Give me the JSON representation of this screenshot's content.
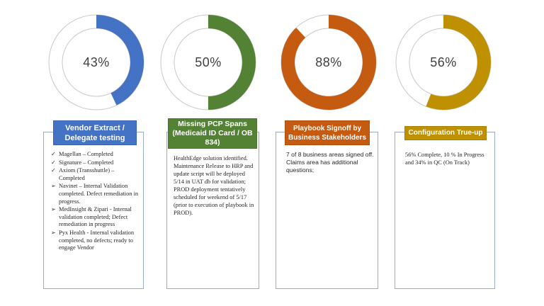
{
  "donuts": [
    {
      "id": "d1",
      "label": "43%",
      "fraction": 0.43,
      "color": "#4472c4"
    },
    {
      "id": "d2",
      "label": "50%",
      "fraction": 0.5,
      "color": "#548235"
    },
    {
      "id": "d3",
      "label": "88%",
      "fraction": 0.88,
      "color": "#c55a11"
    },
    {
      "id": "d4",
      "label": "56%",
      "fraction": 0.56,
      "color": "#bf9000"
    }
  ],
  "cards": {
    "vendor": {
      "title": "Vendor Extract / Delegate testing",
      "items": [
        {
          "mark": "✓",
          "icon": "check-icon",
          "text": "Magellan – Completed"
        },
        {
          "mark": "✓",
          "icon": "check-icon",
          "text": "Signature – Completed"
        },
        {
          "mark": "✓",
          "icon": "check-icon",
          "text": "Axiom (Transshuttle) – Completed"
        },
        {
          "mark": "➢",
          "icon": "arrow-icon",
          "text": "Navinet – Internal Validation completed. Defect remediation in progress."
        },
        {
          "mark": "➢",
          "icon": "arrow-icon",
          "text": " MedInsight & Zipari - Internal validation completed; Defect remediation in progress"
        },
        {
          "mark": "➢",
          "icon": "arrow-icon",
          "text": "Pyx Health - Internal validation completed, no defects; ready to engage Vendor"
        }
      ]
    },
    "pcp": {
      "title": "Missing PCP Spans (Medicaid ID Card / OB 834)",
      "body": "HealthEdge solution identified. Maintenance Release to HRP and update script will be deployed 5/14 in UAT db for validation; PROD deployment tentatively scheduled for weekend of 5/17 (prior to execution of playbook in PROD)."
    },
    "playbook": {
      "title": "Playbook Signoff by Business Stakeholders",
      "body": "7 of 8 business areas signed off. Claims area has additional questions;"
    },
    "config": {
      "title": "Configuration True-up",
      "body": "56% Complete, 10 % In Progress and 34% in QC (On Track)"
    }
  },
  "colors": {
    "blue": "#4472c4",
    "green": "#548235",
    "orange": "#c55a11",
    "gold": "#bf9000",
    "ring_track": "#ffffff",
    "ring_outline": "#c8c8c8"
  }
}
